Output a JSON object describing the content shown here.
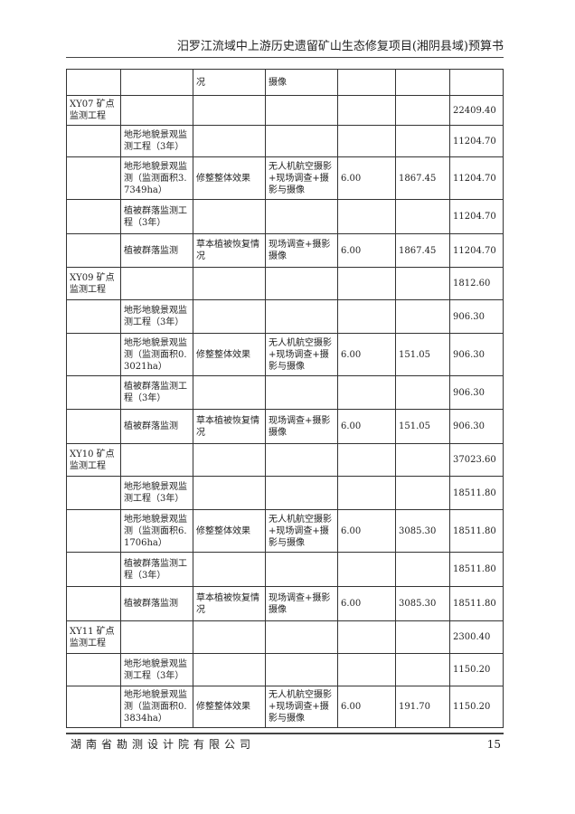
{
  "header": {
    "title": "汨罗江流域中上游历史遗留矿山生态修复项目(湘阴县域)预算书"
  },
  "rows": [
    [
      "",
      "",
      "况",
      "摄像",
      "",
      "",
      ""
    ],
    [
      "XY07 矿点监测工程",
      "",
      "",
      "",
      "",
      "",
      "22409.40"
    ],
    [
      "",
      "地形地貌景观监测工程（3年）",
      "",
      "",
      "",
      "",
      "11204.70"
    ],
    [
      "",
      "地形地貌景观监测（监测面积3.7349ha）",
      "修整整体效果",
      "无人机航空摄影+现场调查+摄影与摄像",
      "6.00",
      "1867.45",
      "11204.70"
    ],
    [
      "",
      "植被群落监测工程（3年）",
      "",
      "",
      "",
      "",
      "11204.70"
    ],
    [
      "",
      "植被群落监测",
      "草本植被恢复情况",
      "现场调查+摄影摄像",
      "6.00",
      "1867.45",
      "11204.70"
    ],
    [
      "XY09 矿点监测工程",
      "",
      "",
      "",
      "",
      "",
      "1812.60"
    ],
    [
      "",
      "地形地貌景观监测工程（3年）",
      "",
      "",
      "",
      "",
      "906.30"
    ],
    [
      "",
      "地形地貌景观监测（监测面积0.3021ha）",
      "修整整体效果",
      "无人机航空摄影+现场调查+摄影与摄像",
      "6.00",
      "151.05",
      "906.30"
    ],
    [
      "",
      "植被群落监测工程（3年）",
      "",
      "",
      "",
      "",
      "906.30"
    ],
    [
      "",
      "植被群落监测",
      "草本植被恢复情况",
      "现场调查+摄影摄像",
      "6.00",
      "151.05",
      "906.30"
    ],
    [
      "XY10 矿点监测工程",
      "",
      "",
      "",
      "",
      "",
      "37023.60"
    ],
    [
      "",
      "地形地貌景观监测工程（3年）",
      "",
      "",
      "",
      "",
      "18511.80"
    ],
    [
      "",
      "地形地貌景观监测（监测面积6.1706ha）",
      "修整整体效果",
      "无人机航空摄影+现场调查+摄影与摄像",
      "6.00",
      "3085.30",
      "18511.80"
    ],
    [
      "",
      "植被群落监测工程（3年）",
      "",
      "",
      "",
      "",
      "18511.80"
    ],
    [
      "",
      "植被群落监测",
      "草本植被恢复情况",
      "现场调查+摄影摄像",
      "6.00",
      "3085.30",
      "18511.80"
    ],
    [
      "XY11 矿点监测工程",
      "",
      "",
      "",
      "",
      "",
      "2300.40"
    ],
    [
      "",
      "地形地貌景观监测工程（3年）",
      "",
      "",
      "",
      "",
      "1150.20"
    ],
    [
      "",
      "地形地貌景观监测（监测面积0.3834ha）",
      "修整整体效果",
      "无人机航空摄影+现场调查+摄影与摄像",
      "6.00",
      "191.70",
      "1150.20"
    ]
  ],
  "footer": {
    "company": "湖南省勘测设计院有限公司",
    "page_number": "15"
  }
}
